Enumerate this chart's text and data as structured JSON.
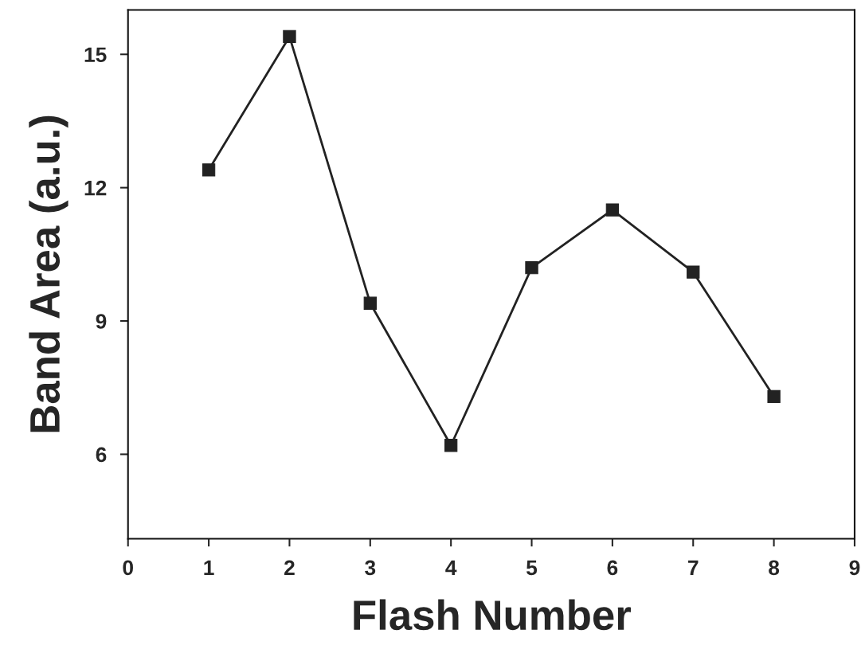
{
  "chart_data": {
    "type": "line",
    "xlabel": "Flash Number",
    "ylabel": "Band Area (a.u.)",
    "x": [
      1,
      2,
      3,
      4,
      5,
      6,
      7,
      8
    ],
    "series": [
      {
        "color": "#222222",
        "values": [
          12.4,
          15.4,
          9.4,
          6.2,
          10.2,
          11.5,
          10.1,
          7.3
        ]
      }
    ],
    "xlim": [
      0,
      9
    ],
    "xticks": [
      0,
      1,
      2,
      3,
      4,
      5,
      6,
      7,
      8,
      9
    ],
    "ylim": [
      4.1,
      16
    ],
    "yticks": [
      6,
      9,
      12,
      15
    ],
    "grid": false,
    "marker": "square",
    "line_style": "solid"
  }
}
